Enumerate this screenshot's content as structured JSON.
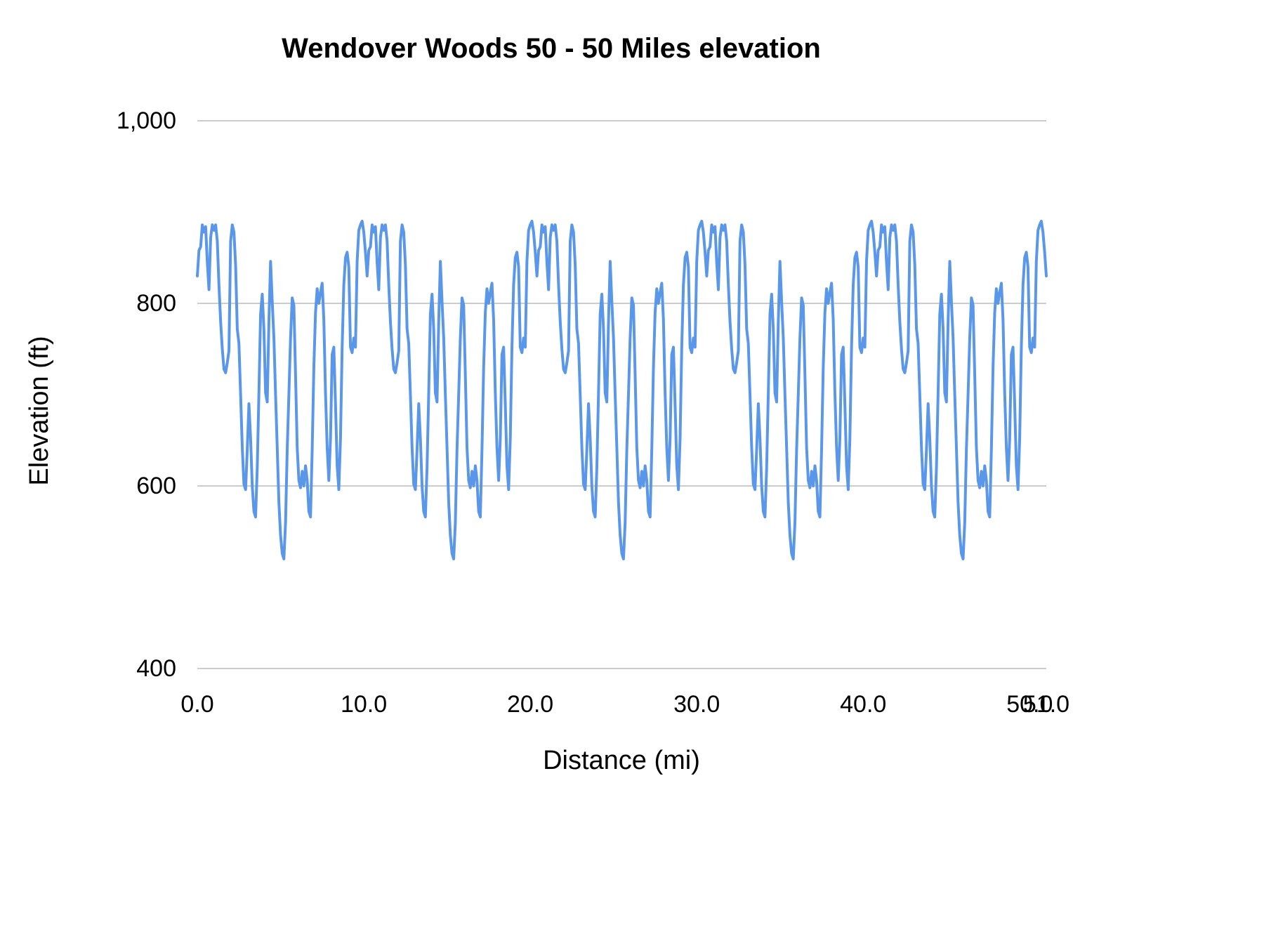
{
  "chart_data": {
    "type": "line",
    "title": "Wendover Woods 50 - 50 Miles elevation",
    "xlabel": "Distance (mi)",
    "ylabel": "Elevation (ft)",
    "xlim": [
      0,
      51
    ],
    "ylim": [
      400,
      1000
    ],
    "x_ticks": [
      0,
      10,
      20,
      30,
      40,
      50,
      51
    ],
    "x_tick_labels": [
      "0.0",
      "10.0",
      "20.0",
      "30.0",
      "40.0",
      "50.0",
      "51.0"
    ],
    "y_ticks": [
      400,
      600,
      800,
      1000
    ],
    "y_tick_labels": [
      "400",
      "600",
      "800",
      "1,000"
    ],
    "grid": true,
    "legend": "none",
    "line_color": "#5b97e8",
    "gridline_color": "#cccccc",
    "series_name": "Elevation",
    "laps": 5,
    "lap_length_mi": 10.2,
    "lap_profile": [
      [
        0.0,
        830
      ],
      [
        0.1,
        858
      ],
      [
        0.2,
        862
      ],
      [
        0.3,
        886
      ],
      [
        0.4,
        878
      ],
      [
        0.5,
        884
      ],
      [
        0.6,
        845
      ],
      [
        0.7,
        815
      ],
      [
        0.8,
        872
      ],
      [
        0.9,
        886
      ],
      [
        1.0,
        880
      ],
      [
        1.1,
        886
      ],
      [
        1.2,
        868
      ],
      [
        1.3,
        820
      ],
      [
        1.4,
        780
      ],
      [
        1.5,
        750
      ],
      [
        1.6,
        728
      ],
      [
        1.7,
        724
      ],
      [
        1.8,
        735
      ],
      [
        1.9,
        748
      ],
      [
        2.0,
        868
      ],
      [
        2.1,
        886
      ],
      [
        2.2,
        878
      ],
      [
        2.3,
        842
      ],
      [
        2.4,
        772
      ],
      [
        2.5,
        756
      ],
      [
        2.6,
        700
      ],
      [
        2.7,
        642
      ],
      [
        2.8,
        602
      ],
      [
        2.9,
        596
      ],
      [
        3.0,
        640
      ],
      [
        3.1,
        690
      ],
      [
        3.2,
        652
      ],
      [
        3.3,
        600
      ],
      [
        3.4,
        572
      ],
      [
        3.5,
        566
      ],
      [
        3.6,
        620
      ],
      [
        3.7,
        702
      ],
      [
        3.8,
        788
      ],
      [
        3.9,
        810
      ],
      [
        4.0,
        772
      ],
      [
        4.1,
        702
      ],
      [
        4.2,
        692
      ],
      [
        4.3,
        780
      ],
      [
        4.4,
        846
      ],
      [
        4.5,
        802
      ],
      [
        4.6,
        762
      ],
      [
        4.7,
        700
      ],
      [
        4.8,
        642
      ],
      [
        4.9,
        582
      ],
      [
        5.0,
        546
      ],
      [
        5.1,
        526
      ],
      [
        5.2,
        520
      ],
      [
        5.3,
        560
      ],
      [
        5.4,
        640
      ],
      [
        5.5,
        700
      ],
      [
        5.6,
        762
      ],
      [
        5.7,
        806
      ],
      [
        5.8,
        798
      ],
      [
        5.9,
        722
      ],
      [
        6.0,
        642
      ],
      [
        6.1,
        606
      ],
      [
        6.2,
        598
      ],
      [
        6.3,
        616
      ],
      [
        6.4,
        600
      ],
      [
        6.5,
        622
      ],
      [
        6.6,
        606
      ],
      [
        6.7,
        572
      ],
      [
        6.8,
        566
      ],
      [
        6.9,
        640
      ],
      [
        7.0,
        730
      ],
      [
        7.1,
        790
      ],
      [
        7.2,
        816
      ],
      [
        7.3,
        800
      ],
      [
        7.4,
        812
      ],
      [
        7.5,
        822
      ],
      [
        7.6,
        782
      ],
      [
        7.7,
        702
      ],
      [
        7.8,
        642
      ],
      [
        7.9,
        606
      ],
      [
        8.0,
        652
      ],
      [
        8.1,
        744
      ],
      [
        8.2,
        752
      ],
      [
        8.3,
        690
      ],
      [
        8.4,
        622
      ],
      [
        8.5,
        596
      ],
      [
        8.6,
        652
      ],
      [
        8.7,
        752
      ],
      [
        8.8,
        820
      ],
      [
        8.9,
        850
      ],
      [
        9.0,
        856
      ],
      [
        9.1,
        840
      ],
      [
        9.2,
        752
      ],
      [
        9.3,
        746
      ],
      [
        9.4,
        762
      ],
      [
        9.5,
        752
      ],
      [
        9.6,
        846
      ],
      [
        9.7,
        880
      ],
      [
        9.8,
        886
      ],
      [
        9.9,
        890
      ],
      [
        10.0,
        878
      ],
      [
        10.1,
        856
      ],
      [
        10.2,
        830
      ]
    ]
  }
}
